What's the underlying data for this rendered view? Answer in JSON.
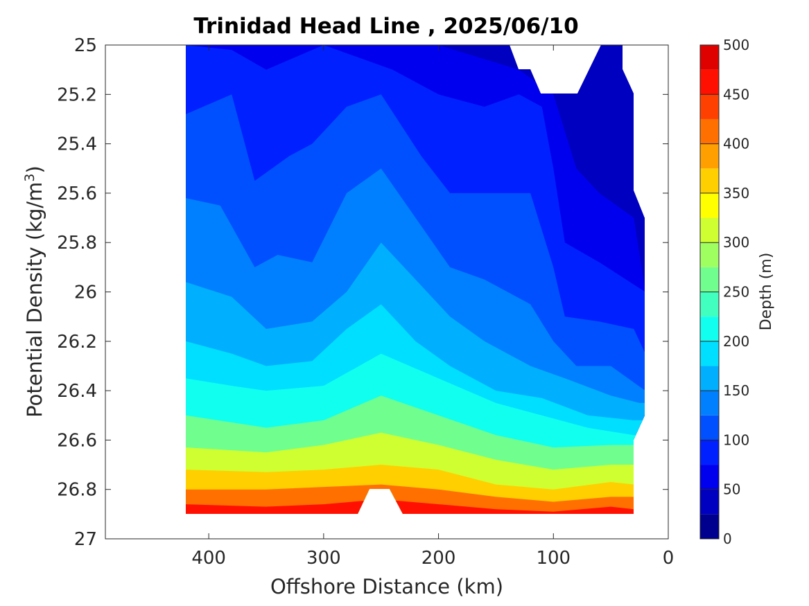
{
  "chart_data": {
    "type": "contourf",
    "title": "Trinidad Head Line , 2025/06/10",
    "xlabel": "Offshore Distance (km)",
    "ylabel_main": "Potential Density (kg/m",
    "ylabel_sup": "3",
    "ylabel_close": ")",
    "x_reversed": true,
    "y_reversed": true,
    "xlim": [
      0,
      490
    ],
    "ylim": [
      25,
      27
    ],
    "xticks": [
      400,
      300,
      200,
      100,
      0
    ],
    "yticks": [
      25,
      25.2,
      25.4,
      25.6,
      25.8,
      26,
      26.2,
      26.4,
      26.6,
      26.8,
      27
    ],
    "colorbar": {
      "label": "Depth (m)",
      "range": [
        0,
        500
      ],
      "ticks": [
        0,
        50,
        100,
        150,
        200,
        250,
        300,
        350,
        400,
        450,
        500
      ],
      "levels": [
        0,
        25,
        50,
        75,
        100,
        125,
        150,
        175,
        200,
        225,
        250,
        275,
        300,
        325,
        350,
        375,
        400,
        425,
        450,
        475,
        500
      ],
      "colors": [
        "#00008f",
        "#0000c0",
        "#0000ef",
        "#0020ff",
        "#0050ff",
        "#0080ff",
        "#00b0ff",
        "#00dfff",
        "#10ffef",
        "#40ffbf",
        "#70ff8f",
        "#9fff60",
        "#cfff30",
        "#ffff00",
        "#ffcf00",
        "#ff9f00",
        "#ff7000",
        "#ff4000",
        "#ff1000",
        "#df0000",
        "#af0000"
      ]
    },
    "data_extent": {
      "x_range_km": [
        20,
        420
      ],
      "sigma_range": [
        25,
        26.9
      ]
    },
    "contours": [
      {
        "depth": 25,
        "points": [
          [
            420,
            25.0
          ],
          [
            40,
            25.0
          ],
          [
            30,
            25.2
          ],
          [
            30,
            25.5
          ]
        ]
      },
      {
        "depth": 50,
        "points": [
          [
            420,
            25.0
          ],
          [
            330,
            25.0
          ],
          [
            300,
            25.0
          ],
          [
            200,
            25.0
          ],
          [
            130,
            25.1
          ],
          [
            100,
            25.2
          ],
          [
            80,
            25.5
          ],
          [
            60,
            25.6
          ],
          [
            30,
            25.7
          ],
          [
            20,
            26.0
          ]
        ]
      },
      {
        "depth": 75,
        "points": [
          [
            420,
            25.0
          ],
          [
            380,
            25.02
          ],
          [
            350,
            25.1
          ],
          [
            300,
            25.0
          ],
          [
            240,
            25.1
          ],
          [
            200,
            25.2
          ],
          [
            160,
            25.25
          ],
          [
            130,
            25.2
          ],
          [
            110,
            25.25
          ],
          [
            100,
            25.5
          ],
          [
            90,
            25.8
          ],
          [
            60,
            25.88
          ],
          [
            20,
            26.0
          ]
        ]
      },
      {
        "depth": 100,
        "points": [
          [
            420,
            25.28
          ],
          [
            380,
            25.2
          ],
          [
            360,
            25.55
          ],
          [
            330,
            25.45
          ],
          [
            310,
            25.4
          ],
          [
            280,
            25.25
          ],
          [
            250,
            25.2
          ],
          [
            215,
            25.45
          ],
          [
            190,
            25.6
          ],
          [
            160,
            25.6
          ],
          [
            120,
            25.6
          ],
          [
            100,
            25.9
          ],
          [
            90,
            26.1
          ],
          [
            60,
            26.12
          ],
          [
            30,
            26.15
          ],
          [
            20,
            26.25
          ]
        ]
      },
      {
        "depth": 125,
        "points": [
          [
            420,
            25.62
          ],
          [
            390,
            25.65
          ],
          [
            360,
            25.9
          ],
          [
            340,
            25.85
          ],
          [
            310,
            25.88
          ],
          [
            280,
            25.6
          ],
          [
            250,
            25.5
          ],
          [
            220,
            25.7
          ],
          [
            190,
            25.9
          ],
          [
            160,
            25.95
          ],
          [
            120,
            26.05
          ],
          [
            100,
            26.2
          ],
          [
            80,
            26.3
          ],
          [
            50,
            26.3
          ],
          [
            20,
            26.4
          ]
        ]
      },
      {
        "depth": 150,
        "points": [
          [
            420,
            25.96
          ],
          [
            380,
            26.02
          ],
          [
            350,
            26.15
          ],
          [
            310,
            26.12
          ],
          [
            280,
            26.0
          ],
          [
            250,
            25.8
          ],
          [
            220,
            25.95
          ],
          [
            190,
            26.1
          ],
          [
            160,
            26.2
          ],
          [
            120,
            26.3
          ],
          [
            90,
            26.35
          ],
          [
            50,
            26.42
          ],
          [
            25,
            26.45
          ]
        ]
      },
      {
        "depth": 175,
        "points": [
          [
            420,
            26.2
          ],
          [
            380,
            26.25
          ],
          [
            350,
            26.3
          ],
          [
            310,
            26.28
          ],
          [
            280,
            26.15
          ],
          [
            250,
            26.05
          ],
          [
            220,
            26.2
          ],
          [
            190,
            26.3
          ],
          [
            150,
            26.4
          ],
          [
            110,
            26.43
          ],
          [
            70,
            26.5
          ],
          [
            30,
            26.52
          ]
        ]
      },
      {
        "depth": 200,
        "points": [
          [
            420,
            26.35
          ],
          [
            380,
            26.38
          ],
          [
            350,
            26.4
          ],
          [
            300,
            26.38
          ],
          [
            250,
            26.25
          ],
          [
            200,
            26.35
          ],
          [
            150,
            26.45
          ],
          [
            110,
            26.5
          ],
          [
            70,
            26.55
          ],
          [
            30,
            26.58
          ]
        ]
      },
      {
        "depth": 250,
        "points": [
          [
            420,
            26.5
          ],
          [
            350,
            26.55
          ],
          [
            300,
            26.52
          ],
          [
            250,
            26.42
          ],
          [
            200,
            26.5
          ],
          [
            150,
            26.58
          ],
          [
            100,
            26.63
          ],
          [
            50,
            26.62
          ],
          [
            30,
            26.62
          ]
        ]
      },
      {
        "depth": 300,
        "points": [
          [
            420,
            26.63
          ],
          [
            350,
            26.65
          ],
          [
            300,
            26.62
          ],
          [
            250,
            26.57
          ],
          [
            200,
            26.62
          ],
          [
            150,
            26.68
          ],
          [
            100,
            26.72
          ],
          [
            50,
            26.7
          ],
          [
            30,
            26.7
          ]
        ]
      },
      {
        "depth": 350,
        "points": [
          [
            420,
            26.72
          ],
          [
            350,
            26.73
          ],
          [
            300,
            26.72
          ],
          [
            250,
            26.7
          ],
          [
            200,
            26.72
          ],
          [
            150,
            26.78
          ],
          [
            100,
            26.8
          ],
          [
            50,
            26.77
          ],
          [
            30,
            26.78
          ]
        ]
      },
      {
        "depth": 400,
        "points": [
          [
            420,
            26.8
          ],
          [
            350,
            26.8
          ],
          [
            300,
            26.79
          ],
          [
            250,
            26.78
          ],
          [
            200,
            26.8
          ],
          [
            150,
            26.83
          ],
          [
            100,
            26.85
          ],
          [
            50,
            26.83
          ],
          [
            30,
            26.83
          ]
        ]
      },
      {
        "depth": 450,
        "points": [
          [
            420,
            26.86
          ],
          [
            350,
            26.87
          ],
          [
            300,
            26.86
          ],
          [
            250,
            26.84
          ],
          [
            200,
            26.86
          ],
          [
            150,
            26.88
          ],
          [
            100,
            26.89
          ],
          [
            50,
            26.87
          ],
          [
            30,
            26.88
          ]
        ]
      }
    ]
  }
}
